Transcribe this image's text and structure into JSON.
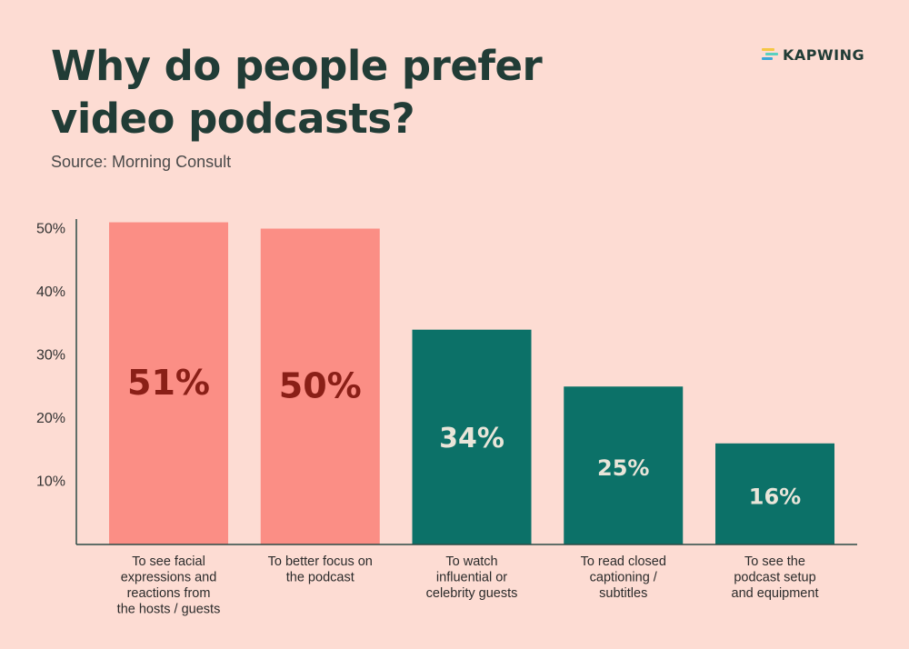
{
  "header": {
    "title_line1": "Why do people prefer",
    "title_line2": "video podcasts?",
    "source": "Source: Morning Consult",
    "logo_text": "KAPWING"
  },
  "colors": {
    "background": "#fddcd3",
    "title": "#213c36",
    "salmon_bar": "#fb8e85",
    "salmon_label": "#8a1f17",
    "teal_bar": "#0c7168",
    "teal_label": "#e9e5d9",
    "axis": "#2c4a45",
    "logo_stripes": [
      "#f5c744",
      "#5ad0c0",
      "#3aa7d8"
    ]
  },
  "chart_data": {
    "type": "bar",
    "title": "Why do people prefer video podcasts?",
    "xlabel": "",
    "ylabel": "",
    "ylim": [
      0,
      52
    ],
    "yticks": [
      10,
      20,
      30,
      40,
      50
    ],
    "ytick_labels": [
      "10%",
      "20%",
      "30%",
      "40%",
      "50%"
    ],
    "grid": false,
    "categories": [
      [
        "To see facial",
        "expressions and",
        "reactions from",
        "the hosts / guests"
      ],
      [
        "To better focus on",
        "the podcast"
      ],
      [
        "To watch",
        "influential or",
        "celebrity guests"
      ],
      [
        "To read closed",
        "captioning /",
        "subtitles"
      ],
      [
        "To see the",
        "podcast setup",
        "and equipment"
      ]
    ],
    "values": [
      51,
      50,
      34,
      25,
      16
    ],
    "data_labels": [
      "51%",
      "50%",
      "34%",
      "25%",
      "16%"
    ],
    "bar_colors": [
      "#fb8e85",
      "#fb8e85",
      "#0c7168",
      "#0c7168",
      "#0c7168"
    ],
    "label_colors": [
      "#8a1f17",
      "#8a1f17",
      "#e9e5d9",
      "#e9e5d9",
      "#e9e5d9"
    ]
  }
}
